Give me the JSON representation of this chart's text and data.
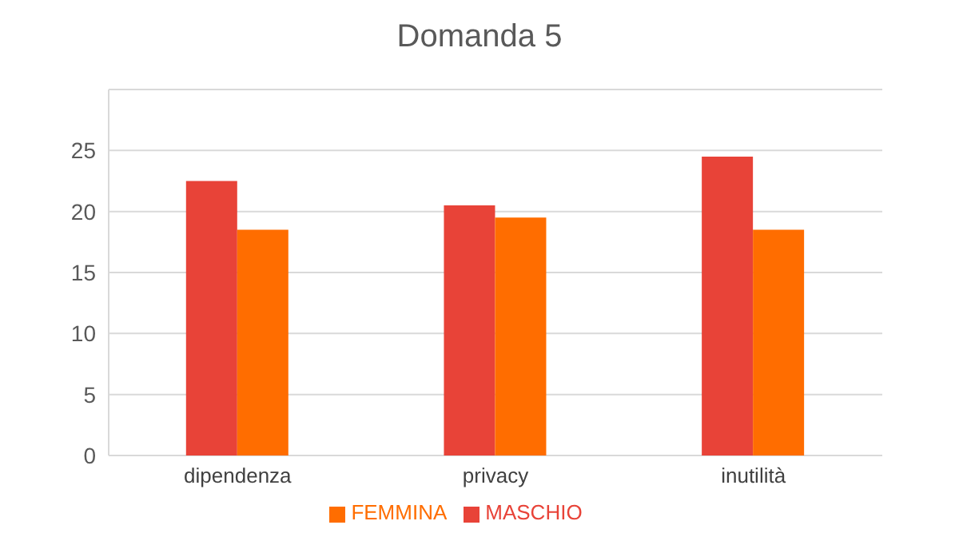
{
  "chart_data": {
    "type": "bar",
    "title": "Domanda 5",
    "categories": [
      "dipendenza",
      "privacy",
      "inutilità"
    ],
    "series": [
      {
        "name": "MASCHIO",
        "color": "#e84338",
        "values": [
          22.5,
          20.5,
          24.5
        ]
      },
      {
        "name": "FEMMINA",
        "color": "#ff6d00",
        "values": [
          18.5,
          19.5,
          18.5
        ]
      }
    ],
    "ylim": [
      0,
      30
    ],
    "yticks": [
      0,
      5,
      10,
      15,
      20,
      25,
      {
        "value": 30,
        "label": null
      }
    ],
    "grid": "y",
    "legend": "bottom"
  }
}
